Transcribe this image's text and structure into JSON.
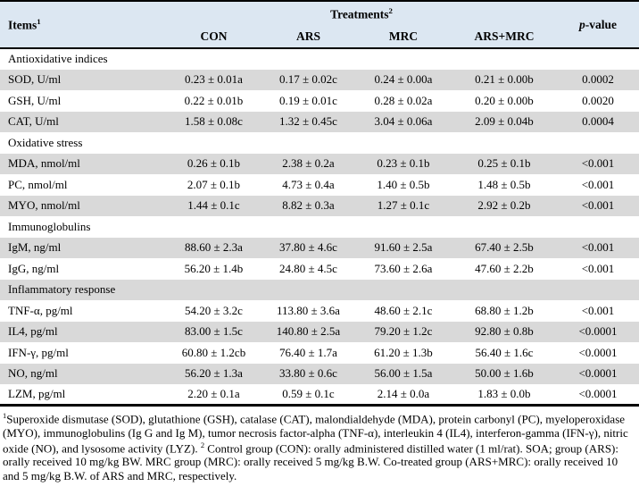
{
  "colors": {
    "header_bg": "#dce7f2",
    "stripe_bg": "#d9d9d9",
    "row_bg": "#ffffff",
    "border": "#000000",
    "text": "#000000"
  },
  "table": {
    "items_header": {
      "label": "Items",
      "sup": "1"
    },
    "treatments_header": {
      "label": "Treatments",
      "sup": "2"
    },
    "pvalue_header": {
      "italic": "p",
      "rest": "-value"
    },
    "treatment_columns": [
      "CON",
      "ARS",
      "MRC",
      "ARS+MRC"
    ],
    "rows": [
      {
        "type": "section",
        "label": "Antioxidative indices"
      },
      {
        "type": "data",
        "label": "SOD, U/ml",
        "values": [
          "0.23 ± 0.01a",
          "0.17 ± 0.02c",
          "0.24 ± 0.00a",
          "0.21 ± 0.00b"
        ],
        "p_value": "0.0002"
      },
      {
        "type": "data",
        "label": "GSH, U/ml",
        "values": [
          "0.22 ± 0.01b",
          "0.19 ± 0.01c",
          "0.28 ± 0.02a",
          "0.20 ± 0.00b"
        ],
        "p_value": "0.0020"
      },
      {
        "type": "data",
        "label": "CAT, U/ml",
        "values": [
          "1.58 ± 0.08c",
          "1.32 ± 0.45c",
          "3.04 ± 0.06a",
          "2.09 ± 0.04b"
        ],
        "p_value": "0.0004"
      },
      {
        "type": "section",
        "label": "Oxidative stress"
      },
      {
        "type": "data",
        "label": "MDA, nmol/ml",
        "values": [
          "0.26 ± 0.1b",
          "2.38 ± 0.2a",
          "0.23 ± 0.1b",
          "0.25 ± 0.1b"
        ],
        "p_value": "<0.001"
      },
      {
        "type": "data",
        "label": "PC, nmol/ml",
        "values": [
          "2.07 ± 0.1b",
          "4.73 ± 0.4a",
          "1.40 ± 0.5b",
          "1.48 ± 0.5b"
        ],
        "p_value": "<0.001"
      },
      {
        "type": "data",
        "label": "MYO, nmol/ml",
        "values": [
          "1.44 ± 0.1c",
          "8.82 ± 0.3a",
          "1.27 ± 0.1c",
          "2.92 ± 0.2b"
        ],
        "p_value": "<0.001"
      },
      {
        "type": "section",
        "label": "Immunoglobulins"
      },
      {
        "type": "data",
        "label": "IgM, ng/ml",
        "values": [
          "88.60 ± 2.3a",
          "37.80 ± 4.6c",
          "91.60 ± 2.5a",
          "67.40 ± 2.5b"
        ],
        "p_value": "<0.001"
      },
      {
        "type": "data",
        "label": "IgG, ng/ml",
        "values": [
          "56.20 ± 1.4b",
          "24.80 ± 4.5c",
          "73.60 ± 2.6a",
          "47.60 ± 2.2b"
        ],
        "p_value": "<0.001"
      },
      {
        "type": "section",
        "label": "Inflammatory response"
      },
      {
        "type": "data",
        "label": "TNF-α, pg/ml",
        "values": [
          "54.20 ± 3.2c",
          "113.80 ± 3.6a",
          "48.60 ± 2.1c",
          "68.80 ± 1.2b"
        ],
        "p_value": "<0.001"
      },
      {
        "type": "data",
        "label": "IL4, pg/ml",
        "values": [
          "83.00 ± 1.5c",
          "140.80 ± 2.5a",
          "79.20 ± 1.2c",
          "92.80 ± 0.8b"
        ],
        "p_value": "<0.0001"
      },
      {
        "type": "data",
        "label": "IFN-γ, pg/ml",
        "values": [
          "60.80 ± 1.2cb",
          "76.40 ± 1.7a",
          "61.20 ± 1.3b",
          "56.40 ± 1.6c"
        ],
        "p_value": "<0.0001"
      },
      {
        "type": "data",
        "label": "NO, ng/ml",
        "values": [
          "56.20 ± 1.3a",
          "33.80 ± 0.6c",
          "56.00 ± 1.5a",
          "50.00 ± 1.6b"
        ],
        "p_value": "<0.0001"
      },
      {
        "type": "data",
        "label": "LZM, pg/ml",
        "values": [
          "2.20 ± 0.1a",
          "0.59 ± 0.1c",
          "2.14 ± 0.0a",
          "1.83 ± 0.0b"
        ],
        "p_value": "<0.0001"
      }
    ]
  },
  "footnotes": [
    {
      "sup": "1",
      "text": "Superoxide dismutase (SOD), glutathione (GSH), catalase (CAT), malondialdehyde (MDA), protein carbonyl (PC), myeloperoxidase (MYO), immunoglobulins (Ig G and Ig M), tumor necrosis factor-alpha (TNF-α), interleukin 4 (IL4), interferon-gamma (IFN-γ), nitric oxide (NO), and lysosome activity (LYZ). "
    },
    {
      "sup": "2",
      "text": " Control group (CON): orally administered distilled water (1 ml/rat). SOA; group (ARS): orally received 10 mg/kg BW. MRC group (MRC): orally received 5 mg/kg B.W. Co-treated group (ARS+MRC): orally received 10 and 5 mg/kg B.W. of ARS and MRC, respectively."
    }
  ]
}
